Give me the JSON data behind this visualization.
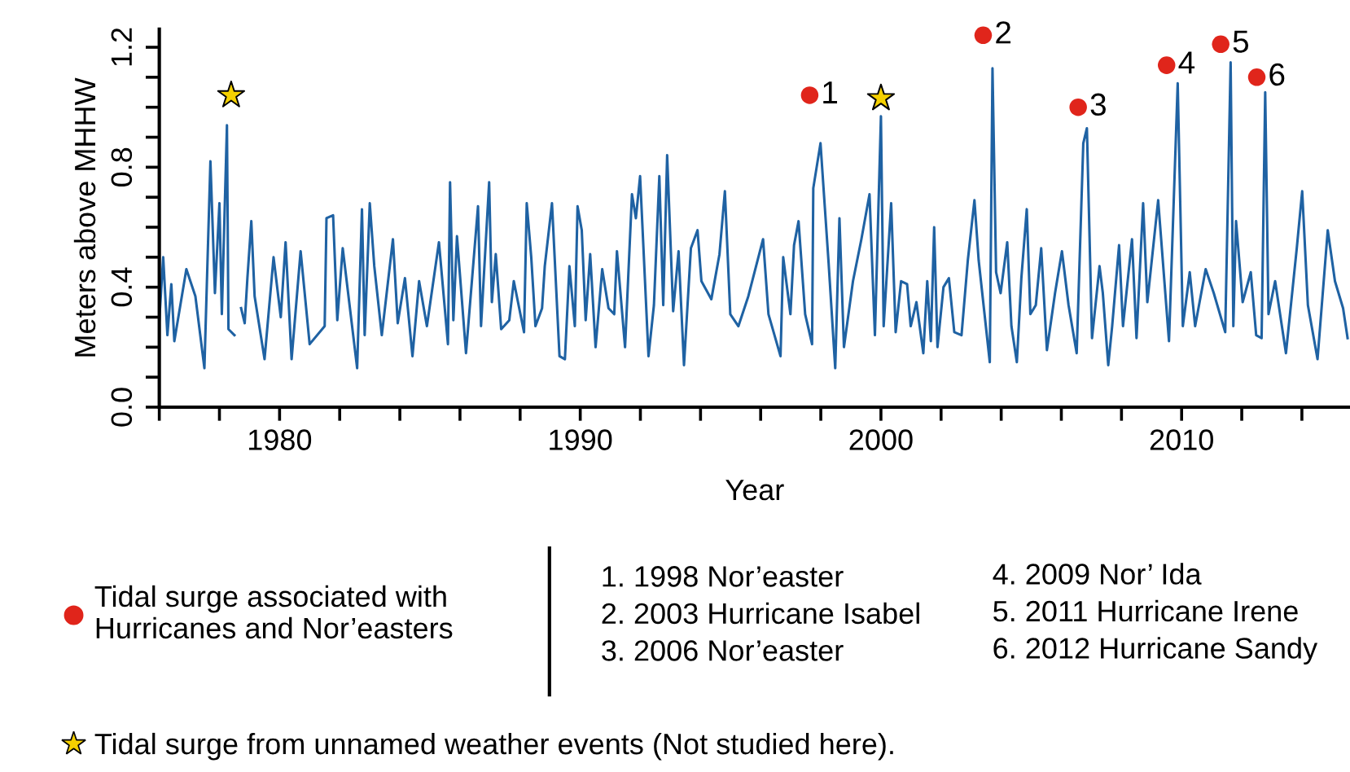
{
  "chart_data": {
    "type": "line",
    "xlabel": "Year",
    "ylabel": "Meters above MHHW",
    "xlim": [
      1976,
      2015.6
    ],
    "ylim": [
      0,
      1.26
    ],
    "xticks": [
      {
        "value": 1976,
        "label": null
      },
      {
        "value": 1978,
        "label": null
      },
      {
        "value": 1980,
        "label": "1980"
      },
      {
        "value": 1982,
        "label": null
      },
      {
        "value": 1984,
        "label": null
      },
      {
        "value": 1986,
        "label": null
      },
      {
        "value": 1988,
        "label": null
      },
      {
        "value": 1990,
        "label": "1990"
      },
      {
        "value": 1992,
        "label": null
      },
      {
        "value": 1994,
        "label": null
      },
      {
        "value": 1996,
        "label": null
      },
      {
        "value": 1998,
        "label": null
      },
      {
        "value": 2000,
        "label": "2000"
      },
      {
        "value": 2002,
        "label": null
      },
      {
        "value": 2004,
        "label": null
      },
      {
        "value": 2006,
        "label": null
      },
      {
        "value": 2008,
        "label": null
      },
      {
        "value": 2010,
        "label": "2010"
      },
      {
        "value": 2012,
        "label": null
      },
      {
        "value": 2014,
        "label": null
      }
    ],
    "yticks": [
      {
        "value": 0,
        "label": "0.0"
      },
      {
        "value": 0.1,
        "label": null
      },
      {
        "value": 0.2,
        "label": null
      },
      {
        "value": 0.3,
        "label": null
      },
      {
        "value": 0.4,
        "label": "0.4"
      },
      {
        "value": 0.5,
        "label": null
      },
      {
        "value": 0.6,
        "label": null
      },
      {
        "value": 0.7,
        "label": null
      },
      {
        "value": 0.8,
        "label": "0.8"
      },
      {
        "value": 0.9,
        "label": null
      },
      {
        "value": 1.0,
        "label": null
      },
      {
        "value": 1.1,
        "label": null
      },
      {
        "value": 1.2,
        "label": "1.2"
      }
    ],
    "grid": false,
    "legend": "bottom",
    "series": [
      {
        "color": "#1f62a3",
        "marker": "none",
        "line_style": "solid",
        "x": [
          1976.0,
          1976.13,
          1976.27,
          1976.4,
          1976.5,
          1976.9,
          1977.2,
          1977.5,
          1977.7,
          1977.85,
          1978.0,
          1978.08,
          1978.25,
          1978.3,
          1978.5,
          1978.6,
          1978.72,
          1978.84,
          1978.93,
          1979.06,
          1979.17,
          1979.5,
          1979.8,
          1980.04,
          1980.2,
          1980.4,
          1980.7,
          1981.0,
          1981.5,
          1981.56,
          1981.78,
          1981.92,
          1982.1,
          1982.58,
          1982.74,
          1982.83,
          1983.0,
          1983.15,
          1983.4,
          1983.77,
          1983.93,
          1984.17,
          1984.42,
          1984.64,
          1984.9,
          1985.3,
          1985.6,
          1985.67,
          1985.78,
          1985.9,
          1986.2,
          1986.6,
          1986.7,
          1986.97,
          1987.06,
          1987.19,
          1987.37,
          1987.64,
          1987.79,
          1987.97,
          1988.13,
          1988.22,
          1988.37,
          1988.51,
          1988.73,
          1988.82,
          1989.06,
          1989.31,
          1989.49,
          1989.64,
          1989.82,
          1989.91,
          1990.05,
          1990.18,
          1990.33,
          1990.51,
          1990.73,
          1990.94,
          1991.13,
          1991.22,
          1991.49,
          1991.72,
          1991.85,
          1991.99,
          1992.27,
          1992.45,
          1992.63,
          1992.76,
          1992.89,
          1993.09,
          1993.27,
          1993.45,
          1993.68,
          1993.9,
          1994.03,
          1994.36,
          1994.63,
          1994.81,
          1994.99,
          1995.26,
          1995.59,
          1996.08,
          1996.26,
          1996.66,
          1996.75,
          1996.99,
          1997.11,
          1997.26,
          1997.48,
          1997.71,
          1997.75,
          1997.99,
          1998.26,
          1998.48,
          1998.62,
          1998.77,
          1999.07,
          1999.35,
          1999.62,
          1999.8,
          2000.0,
          2000.09,
          2000.34,
          2000.49,
          2000.67,
          2000.87,
          2000.99,
          2001.18,
          2001.41,
          2001.54,
          2001.66,
          2001.77,
          2001.88,
          2002.08,
          2002.26,
          2002.44,
          2002.68,
          2002.89,
          2003.11,
          2003.25,
          2003.62,
          2003.71,
          2003.83,
          2003.98,
          2004.2,
          2004.34,
          2004.52,
          2004.67,
          2004.85,
          2004.97,
          2005.15,
          2005.33,
          2005.52,
          2005.79,
          2006.02,
          2006.24,
          2006.51,
          2006.73,
          2006.85,
          2007.02,
          2007.27,
          2007.38,
          2007.56,
          2007.69,
          2007.92,
          2008.05,
          2008.35,
          2008.5,
          2008.72,
          2008.86,
          2009.22,
          2009.58,
          2009.87,
          2010.04,
          2010.27,
          2010.45,
          2010.8,
          2011.07,
          2011.45,
          2011.63,
          2011.72,
          2011.81,
          2012.03,
          2012.3,
          2012.48,
          2012.66,
          2012.78,
          2012.89,
          2013.11,
          2013.47,
          2013.83,
          2014.01,
          2014.2,
          2014.52,
          2014.86,
          2015.1,
          2015.37,
          2015.52
        ],
        "values": [
          0.29,
          0.5,
          0.24,
          0.41,
          0.22,
          0.46,
          0.37,
          0.13,
          0.82,
          0.38,
          0.68,
          0.31,
          0.94,
          0.26,
          0.24,
          null,
          0.33,
          0.28,
          0.43,
          0.62,
          0.37,
          0.16,
          0.5,
          0.3,
          0.55,
          0.16,
          0.52,
          0.21,
          0.27,
          0.63,
          0.64,
          0.29,
          0.53,
          0.13,
          0.66,
          0.24,
          0.68,
          0.47,
          0.24,
          0.56,
          0.28,
          0.43,
          0.17,
          0.42,
          0.27,
          0.55,
          0.21,
          0.75,
          0.29,
          0.57,
          0.18,
          0.67,
          0.27,
          0.75,
          0.35,
          0.51,
          0.26,
          0.29,
          0.42,
          0.33,
          0.25,
          0.68,
          0.5,
          0.27,
          0.33,
          0.47,
          0.68,
          0.17,
          0.16,
          0.47,
          0.27,
          0.67,
          0.59,
          0.29,
          0.51,
          0.2,
          0.46,
          0.33,
          0.31,
          0.52,
          0.2,
          0.71,
          0.63,
          0.77,
          0.17,
          0.34,
          0.77,
          0.34,
          0.84,
          0.32,
          0.52,
          0.14,
          0.53,
          0.59,
          0.42,
          0.36,
          0.51,
          0.72,
          0.31,
          0.27,
          0.37,
          0.56,
          0.31,
          0.17,
          0.5,
          0.31,
          0.54,
          0.62,
          0.31,
          0.21,
          0.73,
          0.88,
          0.48,
          0.13,
          0.63,
          0.2,
          0.42,
          0.56,
          0.71,
          0.24,
          0.97,
          0.27,
          0.68,
          0.25,
          0.42,
          0.41,
          0.27,
          0.35,
          0.18,
          0.42,
          0.22,
          0.6,
          0.2,
          0.4,
          0.43,
          0.25,
          0.24,
          0.49,
          0.69,
          0.49,
          0.15,
          1.13,
          0.45,
          0.38,
          0.55,
          0.27,
          0.15,
          0.43,
          0.66,
          0.31,
          0.34,
          0.53,
          0.19,
          0.38,
          0.52,
          0.34,
          0.18,
          0.88,
          0.93,
          0.23,
          0.47,
          0.38,
          0.14,
          0.27,
          0.54,
          0.27,
          0.56,
          0.23,
          0.68,
          0.35,
          0.69,
          0.22,
          1.08,
          0.27,
          0.45,
          0.27,
          0.46,
          0.38,
          0.25,
          1.15,
          0.27,
          0.62,
          0.35,
          0.45,
          0.24,
          0.23,
          1.05,
          0.31,
          0.42,
          0.18,
          0.53,
          0.72,
          0.34,
          0.16,
          0.59,
          0.42,
          0.33,
          0.23
        ]
      },
      {
        "type": "scatter",
        "name": "Tidal surge associated with\nHurricanes and Nor’easters",
        "color": "#e0251b",
        "marker": "circle",
        "x": [
          1997.63,
          2003.4,
          2006.56,
          2009.5,
          2011.3,
          2012.5
        ],
        "values": [
          1.04,
          1.24,
          1.0,
          1.14,
          1.21,
          1.1
        ]
      },
      {
        "type": "scatter",
        "name": "Tidal surge from unnamed weather events (Not studied here).",
        "color": "#f5d000",
        "marker": "star",
        "x": [
          1978.39,
          2000.0
        ],
        "values": [
          1.04,
          1.03
        ]
      }
    ],
    "annotations": [
      {
        "text": "1",
        "x": 1997.63,
        "y": 1.04
      },
      {
        "text": "2",
        "x": 2003.4,
        "y": 1.24
      },
      {
        "text": "3",
        "x": 2006.56,
        "y": 1.0
      },
      {
        "text": "4",
        "x": 2009.5,
        "y": 1.14
      },
      {
        "text": "5",
        "x": 2011.3,
        "y": 1.21
      },
      {
        "text": "6",
        "x": 2012.5,
        "y": 1.1
      },
      "1. 1998 Nor’easter",
      "2. 2003 Hurricane Isabel",
      "3. 2006 Nor’easter",
      "4. 2009 Nor’ Ida",
      "5. 2011 Hurricane Irene",
      "6. 2012 Hurricane Sandy"
    ]
  }
}
